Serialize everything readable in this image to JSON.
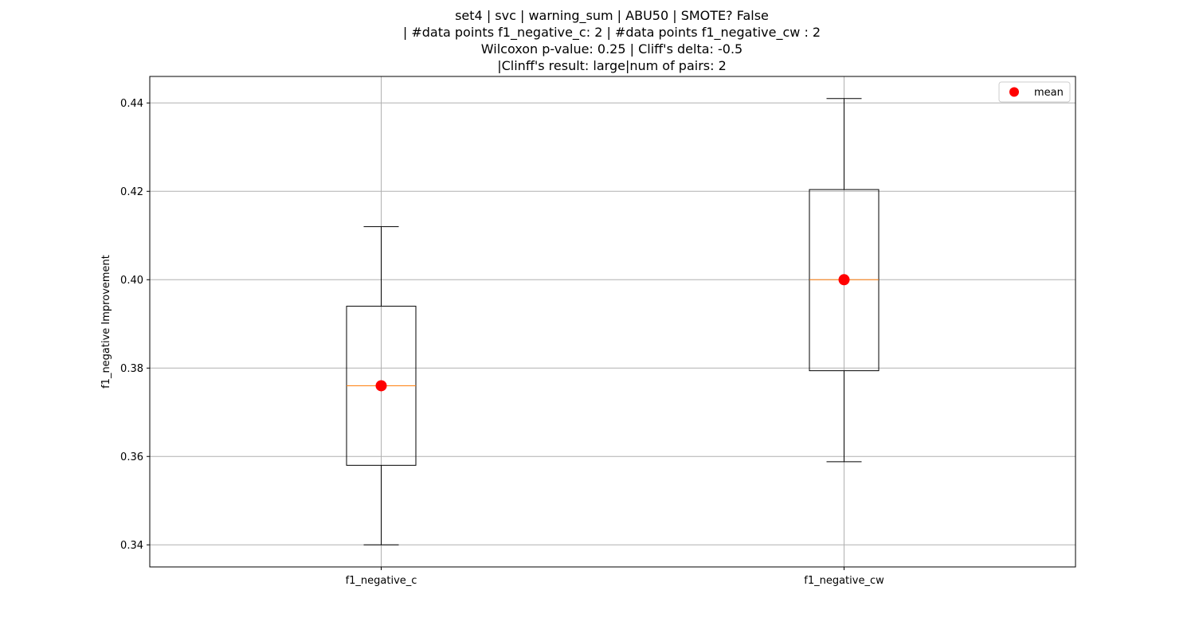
{
  "chart_data": {
    "type": "box",
    "title_lines": [
      "set4 | svc | warning_sum | ABU50 | SMOTE? False",
      "| #data points f1_negative_c: 2 | #data points f1_negative_cw : 2",
      "Wilcoxon p-value: 0.25 | Cliff's delta: -0.5",
      "|Clinff's result: large|num of pairs: 2"
    ],
    "xlabel": "",
    "ylabel": "f1_negative Improvement",
    "ylim": [
      0.335,
      0.446
    ],
    "yticks": [
      0.34,
      0.36,
      0.38,
      0.4,
      0.42,
      0.44
    ],
    "ytick_labels": [
      "0.34",
      "0.36",
      "0.38",
      "0.40",
      "0.42",
      "0.44"
    ],
    "grid": true,
    "legend": {
      "position": "top-right",
      "entries": [
        {
          "label": "mean",
          "color": "#ff0000",
          "marker": "circle"
        }
      ]
    },
    "categories": [
      "f1_negative_c",
      "f1_negative_cw"
    ],
    "boxes": [
      {
        "whisker_low": 0.34,
        "q1": 0.358,
        "median": 0.376,
        "q3": 0.394,
        "whisker_high": 0.412,
        "mean": 0.376
      },
      {
        "whisker_low": 0.3588,
        "q1": 0.3794,
        "median": 0.4,
        "q3": 0.4204,
        "whisker_high": 0.441,
        "mean": 0.4
      }
    ],
    "colors": {
      "box": "#000000",
      "median": "#ff7f0e",
      "mean": "#ff0000",
      "grid": "#b0b0b0"
    }
  }
}
